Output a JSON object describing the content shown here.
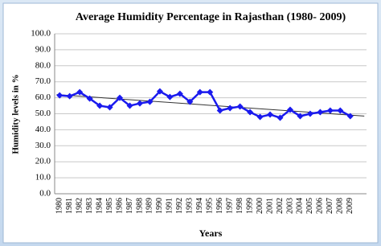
{
  "chart_data": {
    "type": "line",
    "title": "Average Humidity Percentage in Rajasthan (1980- 2009)",
    "x_label": "Years",
    "y_label": "Humidity levels in %",
    "categories": [
      "1980",
      "1981",
      "1982",
      "1983",
      "1984",
      "1985",
      "1986",
      "1987",
      "1988",
      "1989",
      "1990",
      "1991",
      "1992",
      "1993",
      "1994",
      "1995",
      "1996",
      "1997",
      "1998",
      "1999",
      "2000",
      "2001",
      "2002",
      "2003",
      "2004",
      "2005",
      "2006",
      "2007",
      "2008",
      "2009"
    ],
    "series": [
      {
        "color": "#1a1aee",
        "values": [
          61.5,
          61,
          63.5,
          59.5,
          55,
          54,
          60,
          55,
          56.5,
          57.5,
          64,
          60.5,
          62.5,
          57.5,
          63.5,
          63.5,
          52,
          53.5,
          54.5,
          51,
          48,
          49.5,
          47.5,
          52.5,
          48.5,
          50,
          51,
          52,
          52,
          48.5
        ]
      }
    ],
    "ylim": [
      0,
      100
    ],
    "yticks": [
      {
        "value": 0,
        "label": "0.0"
      },
      {
        "value": 10,
        "label": "10.0"
      },
      {
        "value": 20,
        "label": "20.0"
      },
      {
        "value": 30,
        "label": "30.0"
      },
      {
        "value": 40,
        "label": "40.0"
      },
      {
        "value": 50,
        "label": "50.0"
      },
      {
        "value": 60,
        "label": "60.0"
      },
      {
        "value": 70,
        "label": "70.0"
      },
      {
        "value": 80,
        "label": "80.0"
      },
      {
        "value": 90,
        "label": "90.0"
      },
      {
        "value": 100,
        "label": "100.0"
      }
    ],
    "grid": true,
    "trendline": true
  }
}
